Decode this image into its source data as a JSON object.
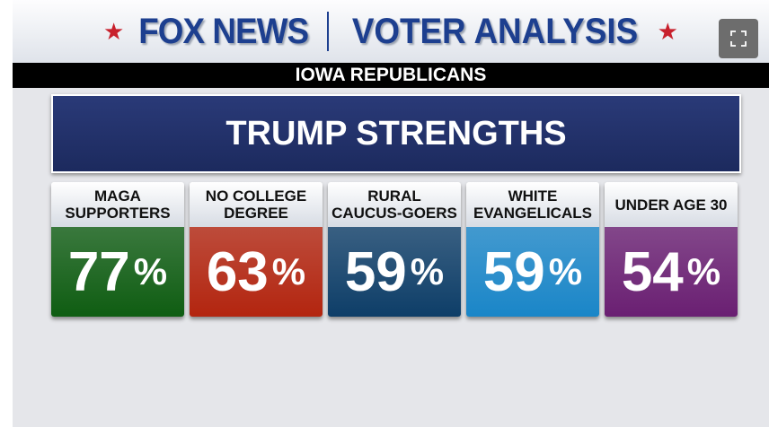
{
  "header": {
    "brand": "FOX NEWS",
    "title": "VOTER ANALYSIS",
    "subtitle": "IOWA REPUBLICANS"
  },
  "expand_button": {
    "icon": "expand-icon"
  },
  "chart_data": {
    "type": "table",
    "title": "TRUMP STRENGTHS",
    "categories": [
      "MAGA\nSUPPORTERS",
      "NO COLLEGE\nDEGREE",
      "RURAL\nCAUCUS-GOERS",
      "WHITE\nEVANGELICALS",
      "UNDER AGE 30"
    ],
    "values": [
      77,
      63,
      59,
      59,
      54
    ],
    "unit": "%",
    "colors": [
      "#0f5d12",
      "#b3250f",
      "#0e3e68",
      "#1a86c8",
      "#6a1f72"
    ]
  }
}
